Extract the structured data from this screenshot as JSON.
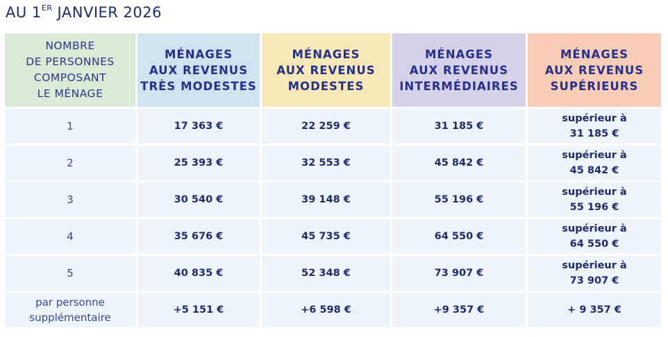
{
  "title": {
    "main": "AU 1",
    "sup": "ER",
    "rest": " JANVIER 2026"
  },
  "colors": {
    "col1": "#d9ead7",
    "col2": "#cfe2f0",
    "col3": "#f6e9b7",
    "col4": "#d6d1ea",
    "col5": "#f7cdb6",
    "body": "#eef5fa",
    "text": "#1f2a6e"
  },
  "headers": [
    "NOMBRE\nDE PERSONNES\nCOMPOSANT\nLE MÉNAGE",
    "MÉNAGES\nAUX REVENUS\nTRÈS MODESTES",
    "MÉNAGES\nAUX REVENUS\nMODESTES",
    "MÉNAGES\nAUX REVENUS\nINTERMÉDIAIRES",
    "MÉNAGES\nAUX REVENUS\nSUPÉRIEURS"
  ],
  "rows": [
    {
      "label": "1",
      "values": [
        "17 363 €",
        "22 259 €",
        "31 185 €",
        "supérieur à\n31 185 €"
      ]
    },
    {
      "label": "2",
      "values": [
        "25 393 €",
        "32 553 €",
        "45 842 €",
        "supérieur à\n45 842 €"
      ]
    },
    {
      "label": "3",
      "values": [
        "30 540 €",
        "39 148 €",
        "55 196 €",
        "supérieur à\n55 196 €"
      ]
    },
    {
      "label": "4",
      "values": [
        "35 676 €",
        "45 735 €",
        "64 550 €",
        "supérieur à\n64 550 €"
      ]
    },
    {
      "label": "5",
      "values": [
        "40 835 €",
        "52 348 €",
        "73 907 €",
        "supérieur à\n73 907 €"
      ]
    },
    {
      "label": "par personne\nsupplémentaire",
      "values": [
        "+5 151 €",
        "+6 598 €",
        "+9 357 €",
        "+ 9 357 €"
      ]
    }
  ]
}
